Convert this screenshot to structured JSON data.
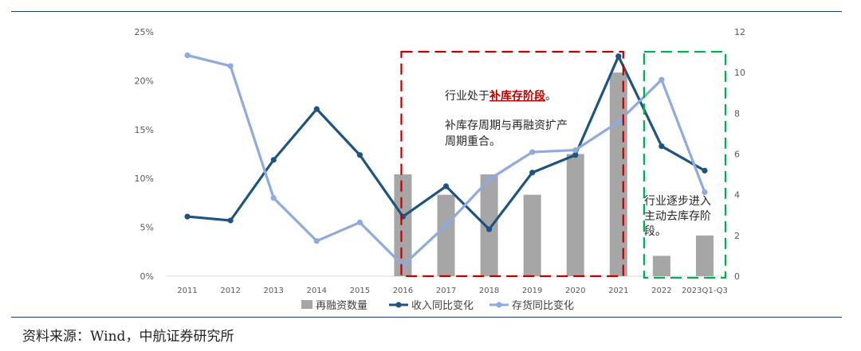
{
  "chart_data": {
    "type": "bar",
    "categories": [
      "2011",
      "2012",
      "2013",
      "2014",
      "2015",
      "2016",
      "2017",
      "2018",
      "2019",
      "2020",
      "2021",
      "2022",
      "2023Q1-Q3"
    ],
    "series": [
      {
        "name": "再融资数量",
        "type": "bar",
        "axis": "right",
        "color": "#a6a6a6",
        "values": [
          null,
          null,
          null,
          null,
          null,
          5,
          4,
          5,
          4,
          6,
          10,
          1,
          2
        ]
      },
      {
        "name": "收入同比变化",
        "type": "line",
        "axis": "left",
        "color": "#1f5480",
        "values": [
          6.1,
          5.7,
          11.9,
          17.1,
          12.4,
          6.1,
          9.2,
          4.8,
          10.6,
          12.4,
          22.5,
          13.3,
          10.8
        ]
      },
      {
        "name": "存货同比变化",
        "type": "line",
        "axis": "left",
        "color": "#8faadc",
        "values": [
          22.6,
          21.5,
          8.0,
          3.6,
          5.5,
          1.1,
          5.2,
          9.9,
          12.7,
          12.9,
          15.8,
          20.1,
          8.6
        ]
      }
    ],
    "left_axis": {
      "ticks": [
        "0%",
        "5%",
        "10%",
        "15%",
        "20%",
        "25%"
      ],
      "min": 0,
      "max": 25
    },
    "right_axis": {
      "ticks": [
        "0",
        "2",
        "4",
        "6",
        "8",
        "10",
        "12"
      ],
      "min": 0,
      "max": 12
    },
    "legend_position": "bottom",
    "annotations": {
      "box1_prefix": "行业处于",
      "box1_highlight": "补库存阶段",
      "box1_suffix": "。",
      "box1_line2": "补库存周期与再融资扩产",
      "box1_line3": "周期重合。",
      "box2_line1": "行业逐步进入",
      "box2_line2": "主动去库存阶",
      "box2_line3": "段。"
    }
  },
  "source": "资料来源：Wind，中航证券研究所",
  "colors": {
    "rule": "#1f3b6e",
    "red_box": "#c00000",
    "green_box": "#00b050",
    "highlight": "#c00000"
  }
}
